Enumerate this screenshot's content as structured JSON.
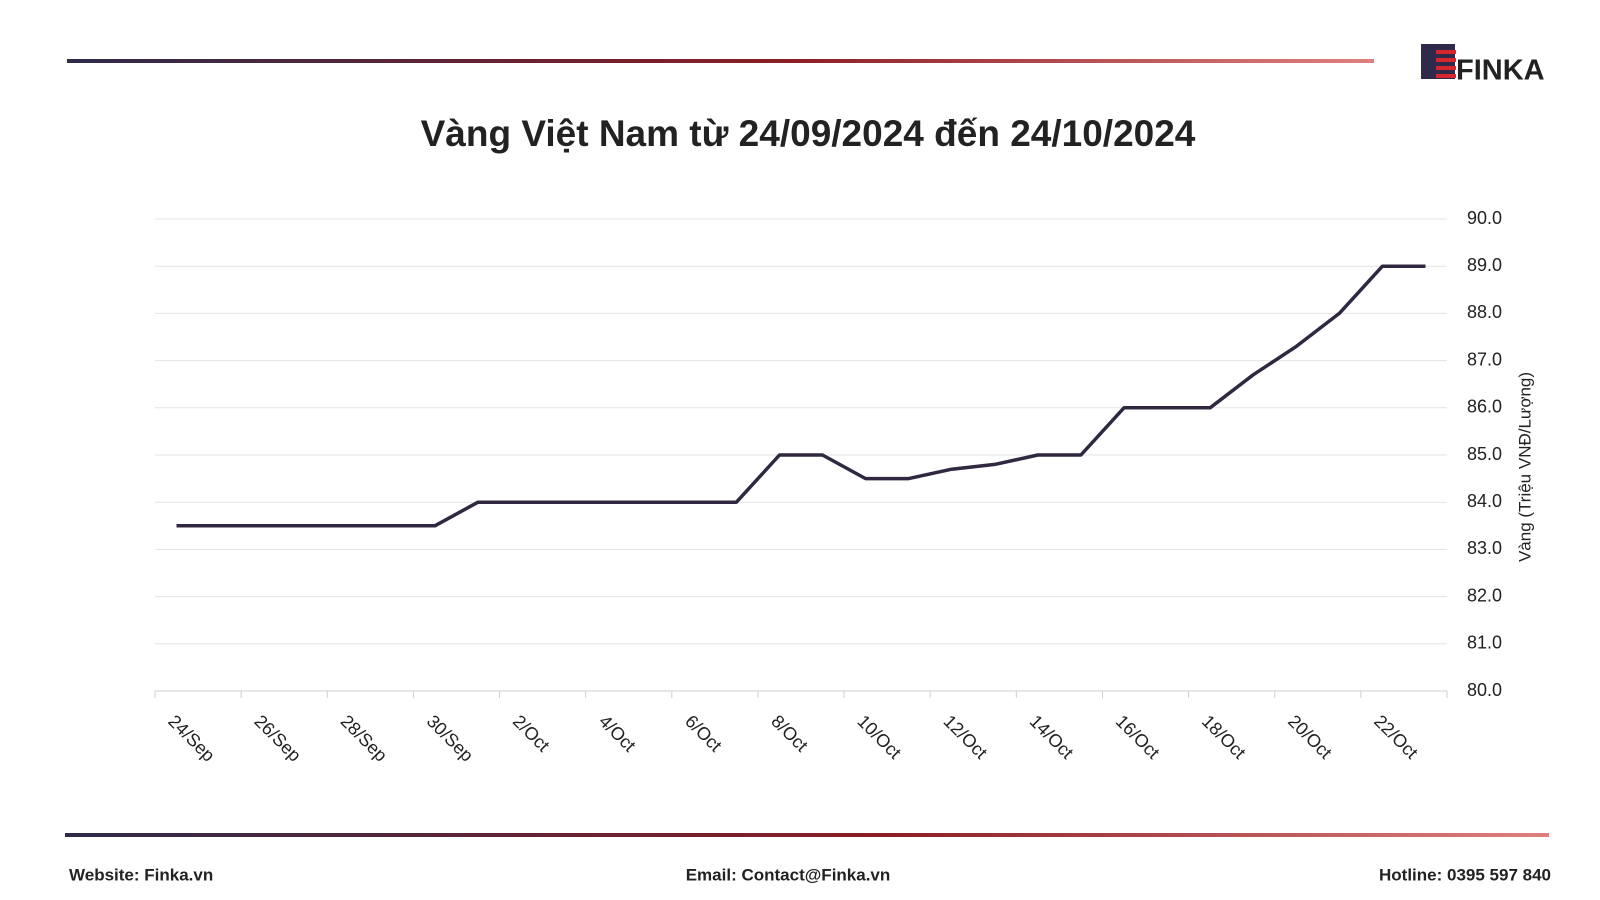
{
  "logo": "FINKA",
  "chart_data": {
    "type": "line",
    "title": "Vàng Việt Nam từ 24/09/2024 đến 24/10/2024",
    "y_axis_label": "Vàng (Triệu VNĐ/Lượng)",
    "categories": [
      "24/Sep",
      null,
      "26/Sep",
      null,
      "28/Sep",
      null,
      "30/Sep",
      null,
      "2/Oct",
      null,
      "4/Oct",
      null,
      "6/Oct",
      null,
      "8/Oct",
      null,
      "10/Oct",
      null,
      "12/Oct",
      null,
      "14/Oct",
      null,
      "16/Oct",
      null,
      "18/Oct",
      null,
      "20/Oct",
      null,
      "22/Oct",
      null
    ],
    "values": [
      83.5,
      83.5,
      83.5,
      83.5,
      83.5,
      83.5,
      83.5,
      84.0,
      84.0,
      84.0,
      84.0,
      84.0,
      84.0,
      84.0,
      85.0,
      85.0,
      84.5,
      84.5,
      84.7,
      84.8,
      85.0,
      85.0,
      86.0,
      86.0,
      86.0,
      86.7,
      87.3,
      88.0,
      89.0,
      89.0
    ],
    "color": "#2f2840",
    "ylim": [
      80,
      90
    ],
    "yticks": [
      {
        "value": 80,
        "label": "80.0"
      },
      {
        "value": 81,
        "label": "81.0"
      },
      {
        "value": 82,
        "label": "82.0"
      },
      {
        "value": 83,
        "label": "83.0"
      },
      {
        "value": 84,
        "label": "84.0"
      },
      {
        "value": 85,
        "label": "85.0"
      },
      {
        "value": 86,
        "label": "86.0"
      },
      {
        "value": 87,
        "label": "87.0"
      },
      {
        "value": 88,
        "label": "88.0"
      },
      {
        "value": 89,
        "label": "89.0"
      },
      {
        "value": 90,
        "label": "90.0"
      }
    ],
    "y_axis_side": "right",
    "grid": true
  },
  "footer": {
    "website": "Website: Finka.vn",
    "email": "Email: Contact@Finka.vn",
    "hotline": "Hotline: 0395 597 840"
  }
}
